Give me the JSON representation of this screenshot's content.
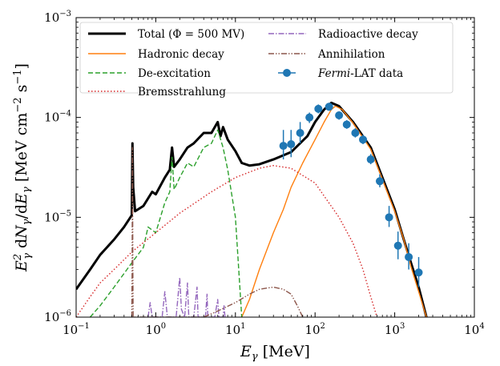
{
  "chart_data": {
    "type": "line",
    "xscale": "log",
    "yscale": "log",
    "xlim": [
      0.1,
      10000
    ],
    "ylim": [
      1e-06,
      0.001
    ],
    "xlabel": "E_γ [MeV]",
    "ylabel": "E_γ² dN_γ/dE_γ [MeV cm⁻² s⁻¹]",
    "x_ticks": [
      {
        "value": 0.1,
        "base": "10",
        "exp": "−1"
      },
      {
        "value": 1,
        "base": "10",
        "exp": "0"
      },
      {
        "value": 10,
        "base": "10",
        "exp": "1"
      },
      {
        "value": 100,
        "base": "10",
        "exp": "2"
      },
      {
        "value": 1000,
        "base": "10",
        "exp": "3"
      },
      {
        "value": 10000,
        "base": "10",
        "exp": "4"
      }
    ],
    "y_ticks": [
      {
        "value": 1e-06,
        "base": "10",
        "exp": "−6"
      },
      {
        "value": 1e-05,
        "base": "10",
        "exp": "−5"
      },
      {
        "value": 0.0001,
        "base": "10",
        "exp": "−4"
      },
      {
        "value": 0.001,
        "base": "10",
        "exp": "−3"
      }
    ],
    "legend": {
      "placement": "top",
      "entries": [
        {
          "key": "total",
          "label": "Total (Φ = 500 MV)"
        },
        {
          "key": "hadronic",
          "label": "Hadronic decay"
        },
        {
          "key": "deexc",
          "label": "De-excitation"
        },
        {
          "key": "brems",
          "label": "Bremsstrahlung"
        },
        {
          "key": "radio",
          "label": "Radioactive decay"
        },
        {
          "key": "annih",
          "label": "Annihilation"
        },
        {
          "key": "fermi",
          "label_italic": "Fermi",
          "label_rest": "-LAT data"
        }
      ]
    },
    "series": [
      {
        "key": "total",
        "name": "Total (Φ = 500 MV)",
        "color": "#000000",
        "style": "solid",
        "points": [
          [
            0.1,
            1.9e-06
          ],
          [
            0.15,
            3e-06
          ],
          [
            0.2,
            4.2e-06
          ],
          [
            0.3,
            6e-06
          ],
          [
            0.4,
            8e-06
          ],
          [
            0.5,
            1.05e-05
          ],
          [
            0.505,
            2.5e-05
          ],
          [
            0.51,
            5.5e-05
          ],
          [
            0.52,
            2e-05
          ],
          [
            0.55,
            1.15e-05
          ],
          [
            0.7,
            1.3e-05
          ],
          [
            0.9,
            1.8e-05
          ],
          [
            1.0,
            1.7e-05
          ],
          [
            1.3,
            2.5e-05
          ],
          [
            1.5,
            3e-05
          ],
          [
            1.6,
            5e-05
          ],
          [
            1.7,
            3.2e-05
          ],
          [
            2.0,
            3.8e-05
          ],
          [
            2.5,
            5e-05
          ],
          [
            3.0,
            5.5e-05
          ],
          [
            4.0,
            7e-05
          ],
          [
            5.0,
            7e-05
          ],
          [
            6.0,
            9e-05
          ],
          [
            6.5,
            6.5e-05
          ],
          [
            7.0,
            8e-05
          ],
          [
            8.0,
            6e-05
          ],
          [
            10,
            4.6e-05
          ],
          [
            12,
            3.5e-05
          ],
          [
            15,
            3.3e-05
          ],
          [
            20,
            3.4e-05
          ],
          [
            30,
            3.8e-05
          ],
          [
            50,
            4.5e-05
          ],
          [
            80,
            6.5e-05
          ],
          [
            100,
            9e-05
          ],
          [
            130,
            0.00012
          ],
          [
            160,
            0.00014
          ],
          [
            200,
            0.00013
          ],
          [
            300,
            9e-05
          ],
          [
            500,
            5e-05
          ],
          [
            700,
            2.5e-05
          ],
          [
            1000,
            1.2e-05
          ],
          [
            1300,
            6e-06
          ],
          [
            1600,
            3.5e-06
          ],
          [
            2000,
            2e-06
          ],
          [
            2500,
            1e-06
          ]
        ]
      },
      {
        "key": "hadronic",
        "name": "Hadronic decay",
        "color": "#ff7f0e",
        "style": "solid",
        "points": [
          [
            12,
            1e-06
          ],
          [
            15,
            1.5e-06
          ],
          [
            20,
            3e-06
          ],
          [
            30,
            7e-06
          ],
          [
            40,
            1.2e-05
          ],
          [
            50,
            2e-05
          ],
          [
            70,
            3.5e-05
          ],
          [
            100,
            6e-05
          ],
          [
            130,
            9e-05
          ],
          [
            160,
            0.00012
          ],
          [
            180,
            0.00013
          ],
          [
            220,
            0.00012
          ],
          [
            300,
            8.8e-05
          ],
          [
            500,
            4.8e-05
          ],
          [
            700,
            2.4e-05
          ],
          [
            1000,
            1.15e-05
          ],
          [
            1300,
            6e-06
          ],
          [
            1600,
            3.2e-06
          ],
          [
            2000,
            1.8e-06
          ],
          [
            2500,
            1e-06
          ]
        ]
      },
      {
        "key": "deexc",
        "name": "De-excitation",
        "color": "#2ca02c",
        "style": "dashed",
        "points": [
          [
            0.15,
            1e-06
          ],
          [
            0.2,
            1.3e-06
          ],
          [
            0.3,
            2e-06
          ],
          [
            0.5,
            3.5e-06
          ],
          [
            0.7,
            5e-06
          ],
          [
            0.8,
            8e-06
          ],
          [
            1.0,
            7e-06
          ],
          [
            1.3,
            1.4e-05
          ],
          [
            1.5,
            1.8e-05
          ],
          [
            1.6,
            4e-05
          ],
          [
            1.7,
            1.9e-05
          ],
          [
            2.0,
            2.5e-05
          ],
          [
            2.5,
            3.5e-05
          ],
          [
            3.0,
            3.2e-05
          ],
          [
            4.0,
            5e-05
          ],
          [
            5.0,
            5.5e-05
          ],
          [
            6.0,
            7.5e-05
          ],
          [
            7.0,
            5e-05
          ],
          [
            8.0,
            3e-05
          ],
          [
            10,
            1e-05
          ],
          [
            12,
            1e-06
          ]
        ]
      },
      {
        "key": "brems",
        "name": "Bremsstrahlung",
        "color": "#d62728",
        "style": "dotted",
        "points": [
          [
            0.1,
            1e-06
          ],
          [
            0.15,
            1.6e-06
          ],
          [
            0.2,
            2.2e-06
          ],
          [
            0.3,
            3e-06
          ],
          [
            0.5,
            4.5e-06
          ],
          [
            1,
            7e-06
          ],
          [
            2,
            1.1e-05
          ],
          [
            5,
            1.8e-05
          ],
          [
            10,
            2.5e-05
          ],
          [
            20,
            3.1e-05
          ],
          [
            30,
            3.3e-05
          ],
          [
            50,
            3.1e-05
          ],
          [
            100,
            2.2e-05
          ],
          [
            200,
            1e-05
          ],
          [
            300,
            5.5e-06
          ],
          [
            400,
            3e-06
          ],
          [
            500,
            1.6e-06
          ],
          [
            600,
            1e-06
          ]
        ]
      },
      {
        "key": "radio",
        "name": "Radioactive decay",
        "color": "#9467bd",
        "style": "dashdot",
        "points": [
          [
            0.8,
            1e-06
          ],
          [
            0.85,
            1.4e-06
          ],
          [
            0.9,
            1e-06
          ],
          [
            1.2,
            1e-06
          ],
          [
            1.3,
            1.8e-06
          ],
          [
            1.4,
            1e-06
          ],
          [
            1.8,
            1e-06
          ],
          [
            2.0,
            2.5e-06
          ],
          [
            2.1,
            1.2e-06
          ],
          [
            2.3,
            1e-06
          ],
          [
            2.5,
            2.2e-06
          ],
          [
            2.6,
            1e-06
          ],
          [
            3.0,
            1e-06
          ],
          [
            3.3,
            2e-06
          ],
          [
            3.4,
            1e-06
          ],
          [
            4.2,
            1e-06
          ],
          [
            4.4,
            1.7e-06
          ],
          [
            4.5,
            1e-06
          ],
          [
            5.5,
            1e-06
          ],
          [
            6.0,
            1.5e-06
          ],
          [
            6.2,
            1e-06
          ],
          [
            7.0,
            1e-06
          ],
          [
            7.2,
            1.3e-06
          ],
          [
            7.4,
            1e-06
          ]
        ]
      },
      {
        "key": "annih",
        "name": "Annihilation",
        "color": "#8c564b",
        "style": "dashdotdot",
        "points": [
          [
            0.5,
            1e-06
          ],
          [
            0.505,
            3e-06
          ],
          [
            0.51,
            5e-05
          ],
          [
            0.515,
            3e-06
          ],
          [
            0.52,
            1e-06
          ],
          [
            4,
            1e-06
          ],
          [
            6,
            1.15e-06
          ],
          [
            10,
            1.4e-06
          ],
          [
            15,
            1.7e-06
          ],
          [
            20,
            1.9e-06
          ],
          [
            30,
            2e-06
          ],
          [
            40,
            1.9e-06
          ],
          [
            50,
            1.7e-06
          ],
          [
            60,
            1.3e-06
          ],
          [
            70,
            1e-06
          ]
        ]
      }
    ],
    "fermi_data": {
      "name": "Fermi-LAT data",
      "color": "#1f77b4",
      "points": [
        {
          "x": 40,
          "y": 5.2e-05,
          "ylo": 3.8e-05,
          "yhi": 7.5e-05
        },
        {
          "x": 50,
          "y": 5.4e-05,
          "ylo": 4e-05,
          "yhi": 7.5e-05
        },
        {
          "x": 65,
          "y": 7e-05,
          "ylo": 5.5e-05,
          "yhi": 9e-05
        },
        {
          "x": 85,
          "y": 0.0001,
          "ylo": 8.8e-05,
          "yhi": 0.000112
        },
        {
          "x": 110,
          "y": 0.000122,
          "ylo": 0.00011,
          "yhi": 0.000135
        },
        {
          "x": 150,
          "y": 0.000128,
          "ylo": 0.000117,
          "yhi": 0.00014
        },
        {
          "x": 200,
          "y": 0.000105,
          "ylo": 9.5e-05,
          "yhi": 0.000115
        },
        {
          "x": 250,
          "y": 8.5e-05,
          "ylo": 7.7e-05,
          "yhi": 9.4e-05
        },
        {
          "x": 320,
          "y": 7e-05,
          "ylo": 6.3e-05,
          "yhi": 7.8e-05
        },
        {
          "x": 400,
          "y": 6e-05,
          "ylo": 5.4e-05,
          "yhi": 6.7e-05
        },
        {
          "x": 500,
          "y": 3.8e-05,
          "ylo": 3.4e-05,
          "yhi": 4.3e-05
        },
        {
          "x": 650,
          "y": 2.3e-05,
          "ylo": 2e-05,
          "yhi": 2.7e-05
        },
        {
          "x": 850,
          "y": 1e-05,
          "ylo": 8e-06,
          "yhi": 1.3e-05
        },
        {
          "x": 1100,
          "y": 5.2e-06,
          "ylo": 3.8e-06,
          "yhi": 7.2e-06
        },
        {
          "x": 1500,
          "y": 4e-06,
          "ylo": 3e-06,
          "yhi": 5.5e-06
        },
        {
          "x": 2000,
          "y": 2.8e-06,
          "ylo": 2e-06,
          "yhi": 4e-06
        }
      ]
    }
  }
}
